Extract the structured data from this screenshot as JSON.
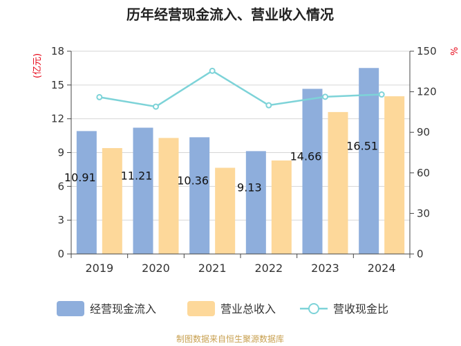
{
  "chart_data": {
    "type": "bar",
    "title": "历年经营现金流入、营业收入情况",
    "categories": [
      "2019",
      "2020",
      "2021",
      "2022",
      "2023",
      "2024"
    ],
    "series": [
      {
        "name": "经营现金流入",
        "type": "bar",
        "axis": "left",
        "values": [
          10.91,
          11.21,
          10.36,
          9.13,
          14.66,
          16.51
        ],
        "labels": [
          "10.91",
          "11.21",
          "10.36",
          "9.13",
          "14.66",
          "16.51"
        ],
        "color": "#8eaedc"
      },
      {
        "name": "营业总收入",
        "type": "bar",
        "axis": "left",
        "values": [
          9.4,
          10.3,
          7.65,
          8.3,
          12.6,
          14.0
        ],
        "color": "#fdd89a"
      },
      {
        "name": "营收现金比",
        "type": "line",
        "axis": "right",
        "values": [
          116,
          109,
          135.5,
          110,
          116.3,
          118
        ],
        "color": "#7dd3d8"
      }
    ],
    "ylabel": "(亿元)",
    "y2label": "%",
    "ylim": [
      0,
      18
    ],
    "yticks": [
      "0",
      "3",
      "6",
      "9",
      "12",
      "15",
      "18"
    ],
    "y2lim": [
      0,
      150
    ],
    "y2ticks": [
      "0",
      "30",
      "60",
      "90",
      "120",
      "150"
    ],
    "legend_position": "bottom",
    "grid": true
  },
  "footer": {
    "source": "制图数据来自恒生聚源数据库"
  }
}
